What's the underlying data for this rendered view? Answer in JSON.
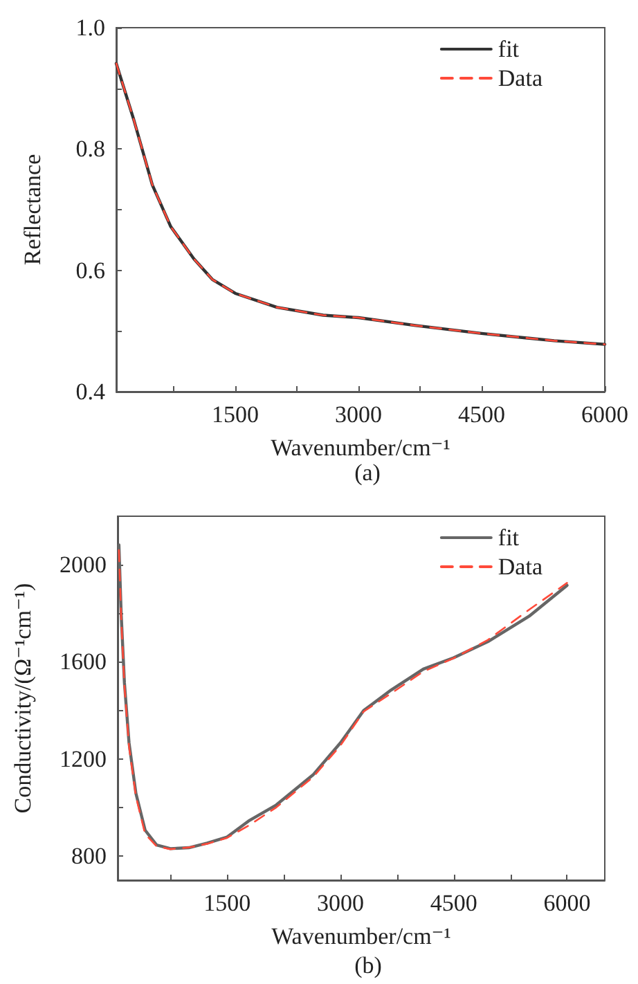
{
  "chart_data": [
    {
      "type": "line",
      "title": "(a)",
      "xlabel": "Wavenumber/cm⁻¹",
      "ylabel": "Reflectance",
      "xlim": [
        50,
        6000
      ],
      "ylim": [
        0.4,
        1.0
      ],
      "xticks": [
        {
          "value": 750,
          "label": null
        },
        1500,
        {
          "value": 2250,
          "label": null
        },
        3000,
        {
          "value": 3750,
          "label": null
        },
        4500,
        {
          "value": 5250,
          "label": null
        },
        6000
      ],
      "yticks": [
        0.4,
        {
          "value": 0.5,
          "label": null
        },
        0.6,
        {
          "value": 0.7,
          "label": null
        },
        0.8,
        {
          "value": 0.9,
          "label": null
        },
        {
          "value": 1.0,
          "label": "1.0"
        }
      ],
      "x": [
        50,
        264,
        489,
        714,
        995,
        1220,
        1500,
        2008,
        2570,
        3000,
        3695,
        4500,
        5383,
        6000
      ],
      "series": [
        {
          "name": "fit",
          "color": "#333333",
          "line_style": "solid",
          "values": [
            0.941,
            0.848,
            0.741,
            0.672,
            0.619,
            0.585,
            0.562,
            0.539,
            0.526,
            0.522,
            0.509,
            0.496,
            0.484,
            0.478
          ]
        },
        {
          "name": "Data",
          "color": "#ff4a3a",
          "line_style": "dashed",
          "values": [
            0.941,
            0.848,
            0.741,
            0.672,
            0.619,
            0.585,
            0.562,
            0.539,
            0.526,
            0.522,
            0.509,
            0.496,
            0.484,
            0.478
          ]
        }
      ],
      "legend": "top right",
      "grid": false
    },
    {
      "type": "line",
      "title": "(b)",
      "xlabel": "Wavenumber/cm⁻¹",
      "ylabel": "Conductivity/(Ω⁻¹cm⁻¹)",
      "xlim": [
        50,
        6500
      ],
      "ylim": [
        700,
        2200
      ],
      "xticks": [
        {
          "value": 750,
          "label": null
        },
        1500,
        {
          "value": 2250,
          "label": null
        },
        3000,
        {
          "value": 3750,
          "label": null
        },
        4500,
        {
          "value": 5250,
          "label": null
        },
        6000
      ],
      "yticks": [
        800,
        {
          "value": 1000,
          "label": null
        },
        1200,
        {
          "value": 1400,
          "label": null
        },
        1600,
        {
          "value": 1800,
          "label": null
        },
        2000
      ],
      "series": [
        {
          "name": "fit",
          "color": "#666666",
          "line_style": "solid",
          "x": [
            67,
            97,
            140,
            201,
            292,
            414,
            566,
            749,
            993,
            1236,
            1500,
            1784,
            2150,
            2637,
            3000,
            3307,
            3672,
            4098,
            4500,
            4951,
            5499,
            6000
          ],
          "values": [
            2082,
            1797,
            1513,
            1266,
            1058,
            906,
            845,
            830,
            834,
            853,
            878,
            944,
            1010,
            1134,
            1266,
            1399,
            1484,
            1570,
            1617,
            1683,
            1788,
            1915
          ]
        },
        {
          "name": "Data",
          "color": "#ff4a3a",
          "line_style": "dashed",
          "x": [
            67,
            97,
            140,
            201,
            292,
            414,
            566,
            749,
            993,
            1236,
            1500,
            1784,
            2150,
            2637,
            3000,
            3307,
            3672,
            4098,
            4500,
            4951,
            5499,
            6000
          ],
          "values": [
            2060,
            1780,
            1500,
            1250,
            1045,
            890,
            840,
            828,
            835,
            850,
            875,
            925,
            1000,
            1125,
            1255,
            1395,
            1470,
            1560,
            1615,
            1690,
            1815,
            1925
          ]
        }
      ],
      "legend": "top right",
      "grid": false
    }
  ]
}
